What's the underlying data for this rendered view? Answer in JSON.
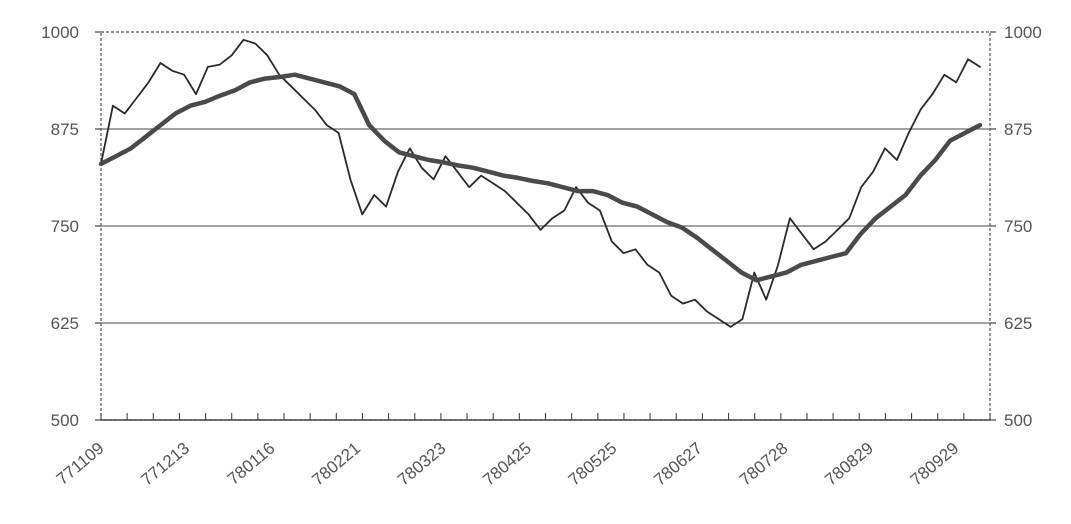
{
  "chart_data": {
    "type": "line",
    "title": "",
    "xlabel": "",
    "ylabel": "",
    "ylim": [
      500,
      1000
    ],
    "yticks": [
      500,
      625,
      750,
      875,
      1000
    ],
    "grid": true,
    "x_tick_labels": [
      "771109",
      "771213",
      "780116",
      "780221",
      "780323",
      "780425",
      "780525",
      "780627",
      "780728",
      "780829",
      "780929"
    ],
    "series": [
      {
        "style": "thin",
        "color": "#2a2a2a",
        "values": [
          830,
          905,
          895,
          915,
          935,
          960,
          950,
          945,
          920,
          955,
          958,
          970,
          990,
          985,
          970,
          945,
          930,
          915,
          900,
          880,
          870,
          810,
          765,
          790,
          775,
          820,
          850,
          825,
          810,
          840,
          820,
          800,
          815,
          805,
          795,
          780,
          765,
          745,
          760,
          770,
          800,
          780,
          770,
          730,
          715,
          720,
          700,
          690,
          660,
          650,
          655,
          640,
          630,
          620,
          630,
          690,
          655,
          700,
          760,
          740,
          720,
          730,
          745,
          760,
          800,
          820,
          850,
          835,
          870,
          900,
          920,
          945,
          935,
          965,
          955
        ]
      },
      {
        "style": "thick",
        "color": "#4a4a4a",
        "values": [
          830,
          840,
          850,
          865,
          880,
          895,
          905,
          910,
          918,
          925,
          935,
          940,
          942,
          945,
          940,
          935,
          930,
          920,
          880,
          860,
          845,
          840,
          835,
          832,
          828,
          825,
          820,
          815,
          812,
          808,
          805,
          800,
          795,
          795,
          790,
          780,
          775,
          765,
          755,
          748,
          735,
          720,
          705,
          690,
          680,
          685,
          690,
          700,
          705,
          710,
          715,
          740,
          760,
          775,
          790,
          815,
          835,
          860,
          870,
          880
        ]
      }
    ]
  }
}
